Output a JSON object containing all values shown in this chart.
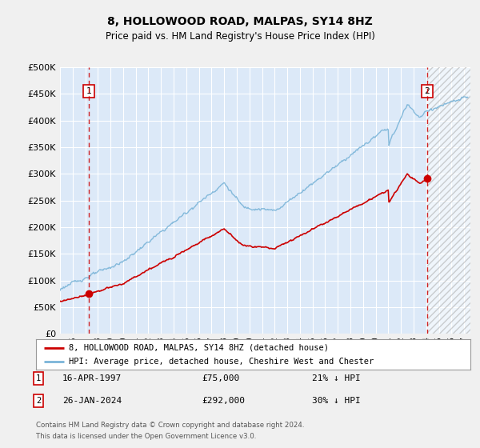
{
  "title": "8, HOLLOWOOD ROAD, MALPAS, SY14 8HZ",
  "subtitle": "Price paid vs. HM Land Registry's House Price Index (HPI)",
  "fig_bg_color": "#f0f0f0",
  "plot_bg_color": "#dce9f8",
  "grid_color": "#ffffff",
  "ylim": [
    0,
    500000
  ],
  "yticks": [
    0,
    50000,
    100000,
    150000,
    200000,
    250000,
    300000,
    350000,
    400000,
    450000,
    500000
  ],
  "xlim_start": 1995.0,
  "xlim_end": 2027.5,
  "sale1_date": 1997.29,
  "sale1_price": 75000,
  "sale1_label": "1",
  "sale2_date": 2024.07,
  "sale2_price": 292000,
  "sale2_label": "2",
  "hpi_color": "#7ab4d8",
  "property_color": "#cc0000",
  "dashed_color": "#cc0000",
  "future_hatch_color": "#aaaaaa",
  "legend_label1": "8, HOLLOWOOD ROAD, MALPAS, SY14 8HZ (detached house)",
  "legend_label2": "HPI: Average price, detached house, Cheshire West and Chester",
  "annotation1_date": "16-APR-1997",
  "annotation1_price": "£75,000",
  "annotation1_pct": "21% ↓ HPI",
  "annotation2_date": "26-JAN-2024",
  "annotation2_price": "£292,000",
  "annotation2_pct": "30% ↓ HPI",
  "footer": "Contains HM Land Registry data © Crown copyright and database right 2024.\nThis data is licensed under the Open Government Licence v3.0.",
  "future_hatch_start": 2024.07
}
